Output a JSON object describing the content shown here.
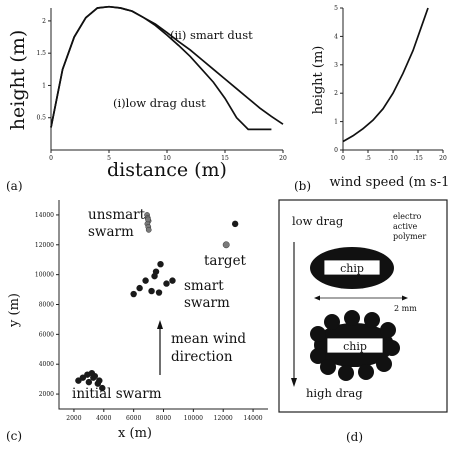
{
  "panels": {
    "a": {
      "letter": "(a)",
      "xlabel": "distance (m)",
      "ylabel": "height (m)",
      "xticks": [
        "0",
        "5",
        "10",
        "15",
        "20"
      ],
      "yticks": [
        "0.5",
        "1",
        "1.5",
        "2"
      ],
      "label_smart": "(ii) smart dust",
      "label_lowdrag": "(i)low drag dust"
    },
    "b": {
      "letter": "(b)",
      "xlabel": "wind speed (m s-1)",
      "ylabel": "height (m)",
      "xticks": [
        "0",
        ".5",
        ".10",
        ".15",
        "20"
      ],
      "yticks": [
        "0",
        "1",
        "2",
        "3",
        "4",
        "5"
      ]
    },
    "c": {
      "letter": "(c)",
      "xlabel": "x (m)",
      "ylabel": "y (m)",
      "xticks": [
        "2000",
        "4000",
        "6000",
        "8000",
        "10000",
        "12000",
        "14000"
      ],
      "yticks": [
        "2000",
        "4000",
        "6000",
        "8000",
        "10000",
        "12000",
        "14000"
      ],
      "label_unsmart": [
        "unsmart",
        "swarm"
      ],
      "label_target": "target",
      "label_smart": [
        "smart",
        "swarm"
      ],
      "label_wind": [
        "mean wind",
        "direction"
      ],
      "label_initial": "initial swarm"
    },
    "d": {
      "letter": "(d)",
      "label_lowdrag": "low drag",
      "label_polymer": [
        "electro",
        "active",
        "polymer"
      ],
      "chip1": "chip",
      "chip2": "chip",
      "scale": "2 mm",
      "label_highdrag": "high drag"
    }
  },
  "chart_data": [
    {
      "type": "line",
      "panel": "a",
      "xlabel": "distance (m)",
      "ylabel": "height (m)",
      "xlim": [
        0,
        20
      ],
      "ylim": [
        0,
        2.2
      ],
      "series": [
        {
          "name": "(ii) smart dust",
          "x": [
            0,
            1,
            2,
            3,
            4,
            5,
            6,
            7,
            8,
            9,
            10,
            11,
            12,
            13,
            14,
            15,
            16,
            17,
            18,
            19,
            20
          ],
          "y": [
            0.35,
            1.25,
            1.75,
            2.05,
            2.2,
            2.22,
            2.2,
            2.15,
            2.05,
            1.95,
            1.82,
            1.68,
            1.55,
            1.4,
            1.25,
            1.1,
            0.95,
            0.8,
            0.65,
            0.52,
            0.4
          ]
        },
        {
          "name": "(i)low drag dust",
          "x": [
            0,
            1,
            2,
            3,
            4,
            5,
            6,
            7,
            8,
            9,
            10,
            11,
            12,
            13,
            14,
            15,
            16,
            17,
            18,
            19
          ],
          "y": [
            0.35,
            1.25,
            1.75,
            2.05,
            2.2,
            2.22,
            2.2,
            2.15,
            2.05,
            1.93,
            1.78,
            1.62,
            1.45,
            1.25,
            1.05,
            0.8,
            0.5,
            0.32,
            0.32,
            0.32
          ]
        }
      ]
    },
    {
      "type": "line",
      "panel": "b",
      "xlabel": "wind speed (m s-1)",
      "ylabel": "height (m)",
      "xlim": [
        0,
        20
      ],
      "ylim": [
        0,
        5
      ],
      "series": [
        {
          "x": [
            0,
            2,
            4,
            6,
            8,
            10,
            12,
            14,
            16,
            17
          ],
          "y": [
            0.3,
            0.5,
            0.75,
            1.05,
            1.45,
            2.0,
            2.7,
            3.5,
            4.5,
            5.0
          ]
        }
      ]
    },
    {
      "type": "scatter",
      "panel": "c",
      "xlabel": "x (m)",
      "ylabel": "y (m)",
      "xlim": [
        1000,
        15000
      ],
      "ylim": [
        1000,
        15000
      ],
      "series": [
        {
          "x": [
            6900,
            6950,
            7000,
            6920,
            6980,
            7010,
            6960
          ],
          "y": [
            14000,
            13800,
            13600,
            13400,
            13200,
            13000,
            13700
          ]
        },
        {
          "x": [
            12800,
            12200
          ],
          "y": [
            13400,
            12000
          ]
        },
        {
          "x": [
            6000,
            6400,
            6800,
            7200,
            7500,
            7800,
            8200,
            8600,
            7400,
            7700
          ],
          "y": [
            8700,
            9100,
            9600,
            8900,
            10200,
            10700,
            9400,
            9600,
            9900,
            8800
          ]
        },
        {
          "x": [
            2300,
            2600,
            2900,
            3200,
            3400,
            3700,
            3600,
            3900,
            3000,
            3300
          ],
          "y": [
            2900,
            3100,
            3300,
            3400,
            3200,
            2900,
            2700,
            2400,
            2800,
            3100
          ]
        }
      ]
    }
  ]
}
